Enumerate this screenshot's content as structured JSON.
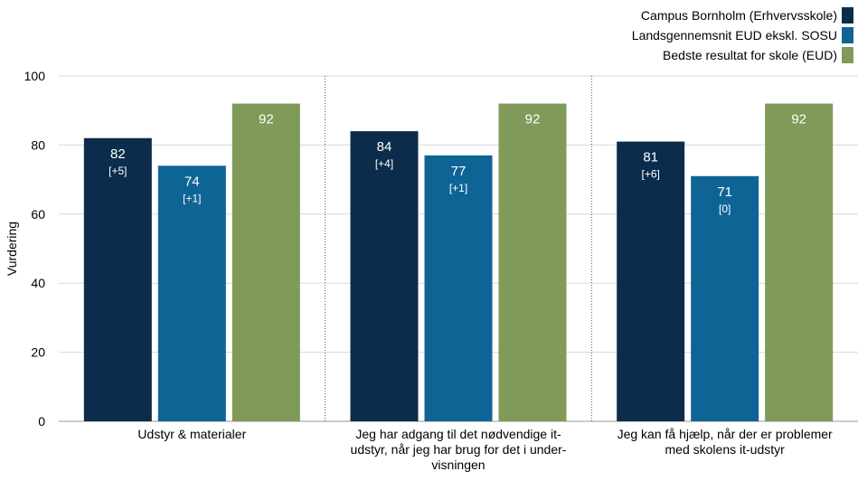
{
  "chart_data": {
    "type": "bar",
    "ylabel": "Vurdering",
    "ylim": [
      0,
      100
    ],
    "yticks": [
      0,
      20,
      40,
      60,
      80,
      100
    ],
    "grid": true,
    "legend_position": "top-right",
    "categories": [
      [
        "Udstyr & materialer"
      ],
      [
        "Jeg har adgang til det nødvendige it-",
        "udstyr, når jeg har brug for det i under-",
        "visningen"
      ],
      [
        "Jeg kan få hjælp, når der er problemer",
        "med skolens it-udstyr"
      ]
    ],
    "series": [
      {
        "name": "Campus Bornholm (Erhvervsskole)",
        "color": "#0b2d4b",
        "values": [
          82,
          84,
          81
        ],
        "diff_labels": [
          "[+5]",
          "[+4]",
          "[+6]"
        ]
      },
      {
        "name": "Landsgennemsnit EUD ekskl. SOSU",
        "color": "#0f6496",
        "values": [
          74,
          77,
          71
        ],
        "diff_labels": [
          "[+1]",
          "[+1]",
          "[0]"
        ]
      },
      {
        "name": "Bedste resultat for skole (EUD)",
        "color": "#7f9a59",
        "values": [
          92,
          92,
          92
        ],
        "diff_labels": [
          "",
          "",
          ""
        ]
      }
    ],
    "bar_value_labels": [
      [
        "82",
        "84",
        "81"
      ],
      [
        "74",
        "77",
        "71"
      ],
      [
        "92",
        "92",
        "92"
      ]
    ]
  }
}
